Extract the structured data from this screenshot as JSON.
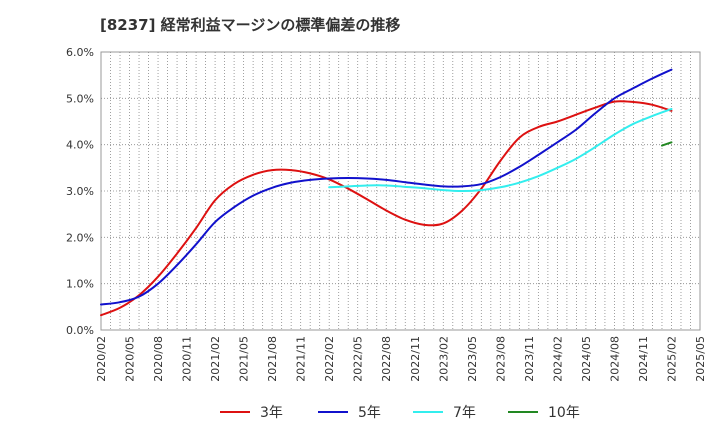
{
  "chart_data": {
    "type": "line",
    "title": "[8237]  経常利益マージンの標準偏差の推移",
    "xlabel": "",
    "ylabel": "",
    "ylim": [
      0,
      6
    ],
    "y_ticks": [
      "0.0%",
      "1.0%",
      "2.0%",
      "3.0%",
      "4.0%",
      "5.0%",
      "6.0%"
    ],
    "x_ticks": [
      "2020/02",
      "2020/05",
      "2020/08",
      "2020/11",
      "2021/02",
      "2021/05",
      "2021/08",
      "2021/11",
      "2022/02",
      "2022/05",
      "2022/08",
      "2022/11",
      "2023/02",
      "2023/05",
      "2023/08",
      "2023/11",
      "2024/02",
      "2024/05",
      "2024/08",
      "2024/11",
      "2025/02",
      "2025/05"
    ],
    "grid": true,
    "legend_position": "bottom",
    "series": [
      {
        "name": "3年",
        "color": "#dd1111",
        "x": [
          "2020/02",
          "2020/04",
          "2020/06",
          "2020/08",
          "2020/10",
          "2020/12",
          "2021/02",
          "2021/04",
          "2021/06",
          "2021/08",
          "2021/10",
          "2021/12",
          "2022/02",
          "2022/04",
          "2022/06",
          "2022/08",
          "2022/10",
          "2022/12",
          "2023/02",
          "2023/04",
          "2023/06",
          "2023/08",
          "2023/10",
          "2023/12",
          "2024/02",
          "2024/04",
          "2024/06",
          "2024/08",
          "2024/10",
          "2024/12",
          "2025/02"
        ],
        "values": [
          0.32,
          0.48,
          0.75,
          1.15,
          1.65,
          2.2,
          2.8,
          3.15,
          3.35,
          3.45,
          3.45,
          3.38,
          3.25,
          3.05,
          2.82,
          2.58,
          2.38,
          2.27,
          2.3,
          2.58,
          3.05,
          3.65,
          4.15,
          4.38,
          4.5,
          4.65,
          4.8,
          4.93,
          4.92,
          4.86,
          4.73
        ]
      },
      {
        "name": "5年",
        "color": "#1111cc",
        "x": [
          "2020/02",
          "2020/04",
          "2020/06",
          "2020/08",
          "2020/10",
          "2020/12",
          "2021/02",
          "2021/04",
          "2021/06",
          "2021/08",
          "2021/10",
          "2021/12",
          "2022/02",
          "2022/04",
          "2022/06",
          "2022/08",
          "2022/10",
          "2022/12",
          "2023/02",
          "2023/04",
          "2023/06",
          "2023/08",
          "2023/10",
          "2023/12",
          "2024/02",
          "2024/04",
          "2024/06",
          "2024/08",
          "2024/10",
          "2024/12",
          "2025/02"
        ],
        "values": [
          0.55,
          0.6,
          0.72,
          1.0,
          1.4,
          1.85,
          2.33,
          2.65,
          2.9,
          3.07,
          3.18,
          3.24,
          3.27,
          3.28,
          3.27,
          3.24,
          3.19,
          3.14,
          3.1,
          3.1,
          3.15,
          3.3,
          3.52,
          3.78,
          4.05,
          4.33,
          4.68,
          5.0,
          5.22,
          5.43,
          5.62
        ]
      },
      {
        "name": "7年",
        "color": "#33eeee",
        "x": [
          "2022/02",
          "2022/04",
          "2022/06",
          "2022/08",
          "2022/10",
          "2022/12",
          "2023/02",
          "2023/04",
          "2023/06",
          "2023/08",
          "2023/10",
          "2023/12",
          "2024/02",
          "2024/04",
          "2024/06",
          "2024/08",
          "2024/10",
          "2024/12",
          "2025/02"
        ],
        "values": [
          3.08,
          3.1,
          3.12,
          3.12,
          3.09,
          3.06,
          3.02,
          3.0,
          3.02,
          3.08,
          3.18,
          3.32,
          3.5,
          3.7,
          3.95,
          4.22,
          4.45,
          4.62,
          4.77
        ]
      },
      {
        "name": "10年",
        "color": "#228822",
        "x": [
          "2025/01",
          "2025/02"
        ],
        "values": [
          3.98,
          4.05
        ]
      }
    ]
  }
}
